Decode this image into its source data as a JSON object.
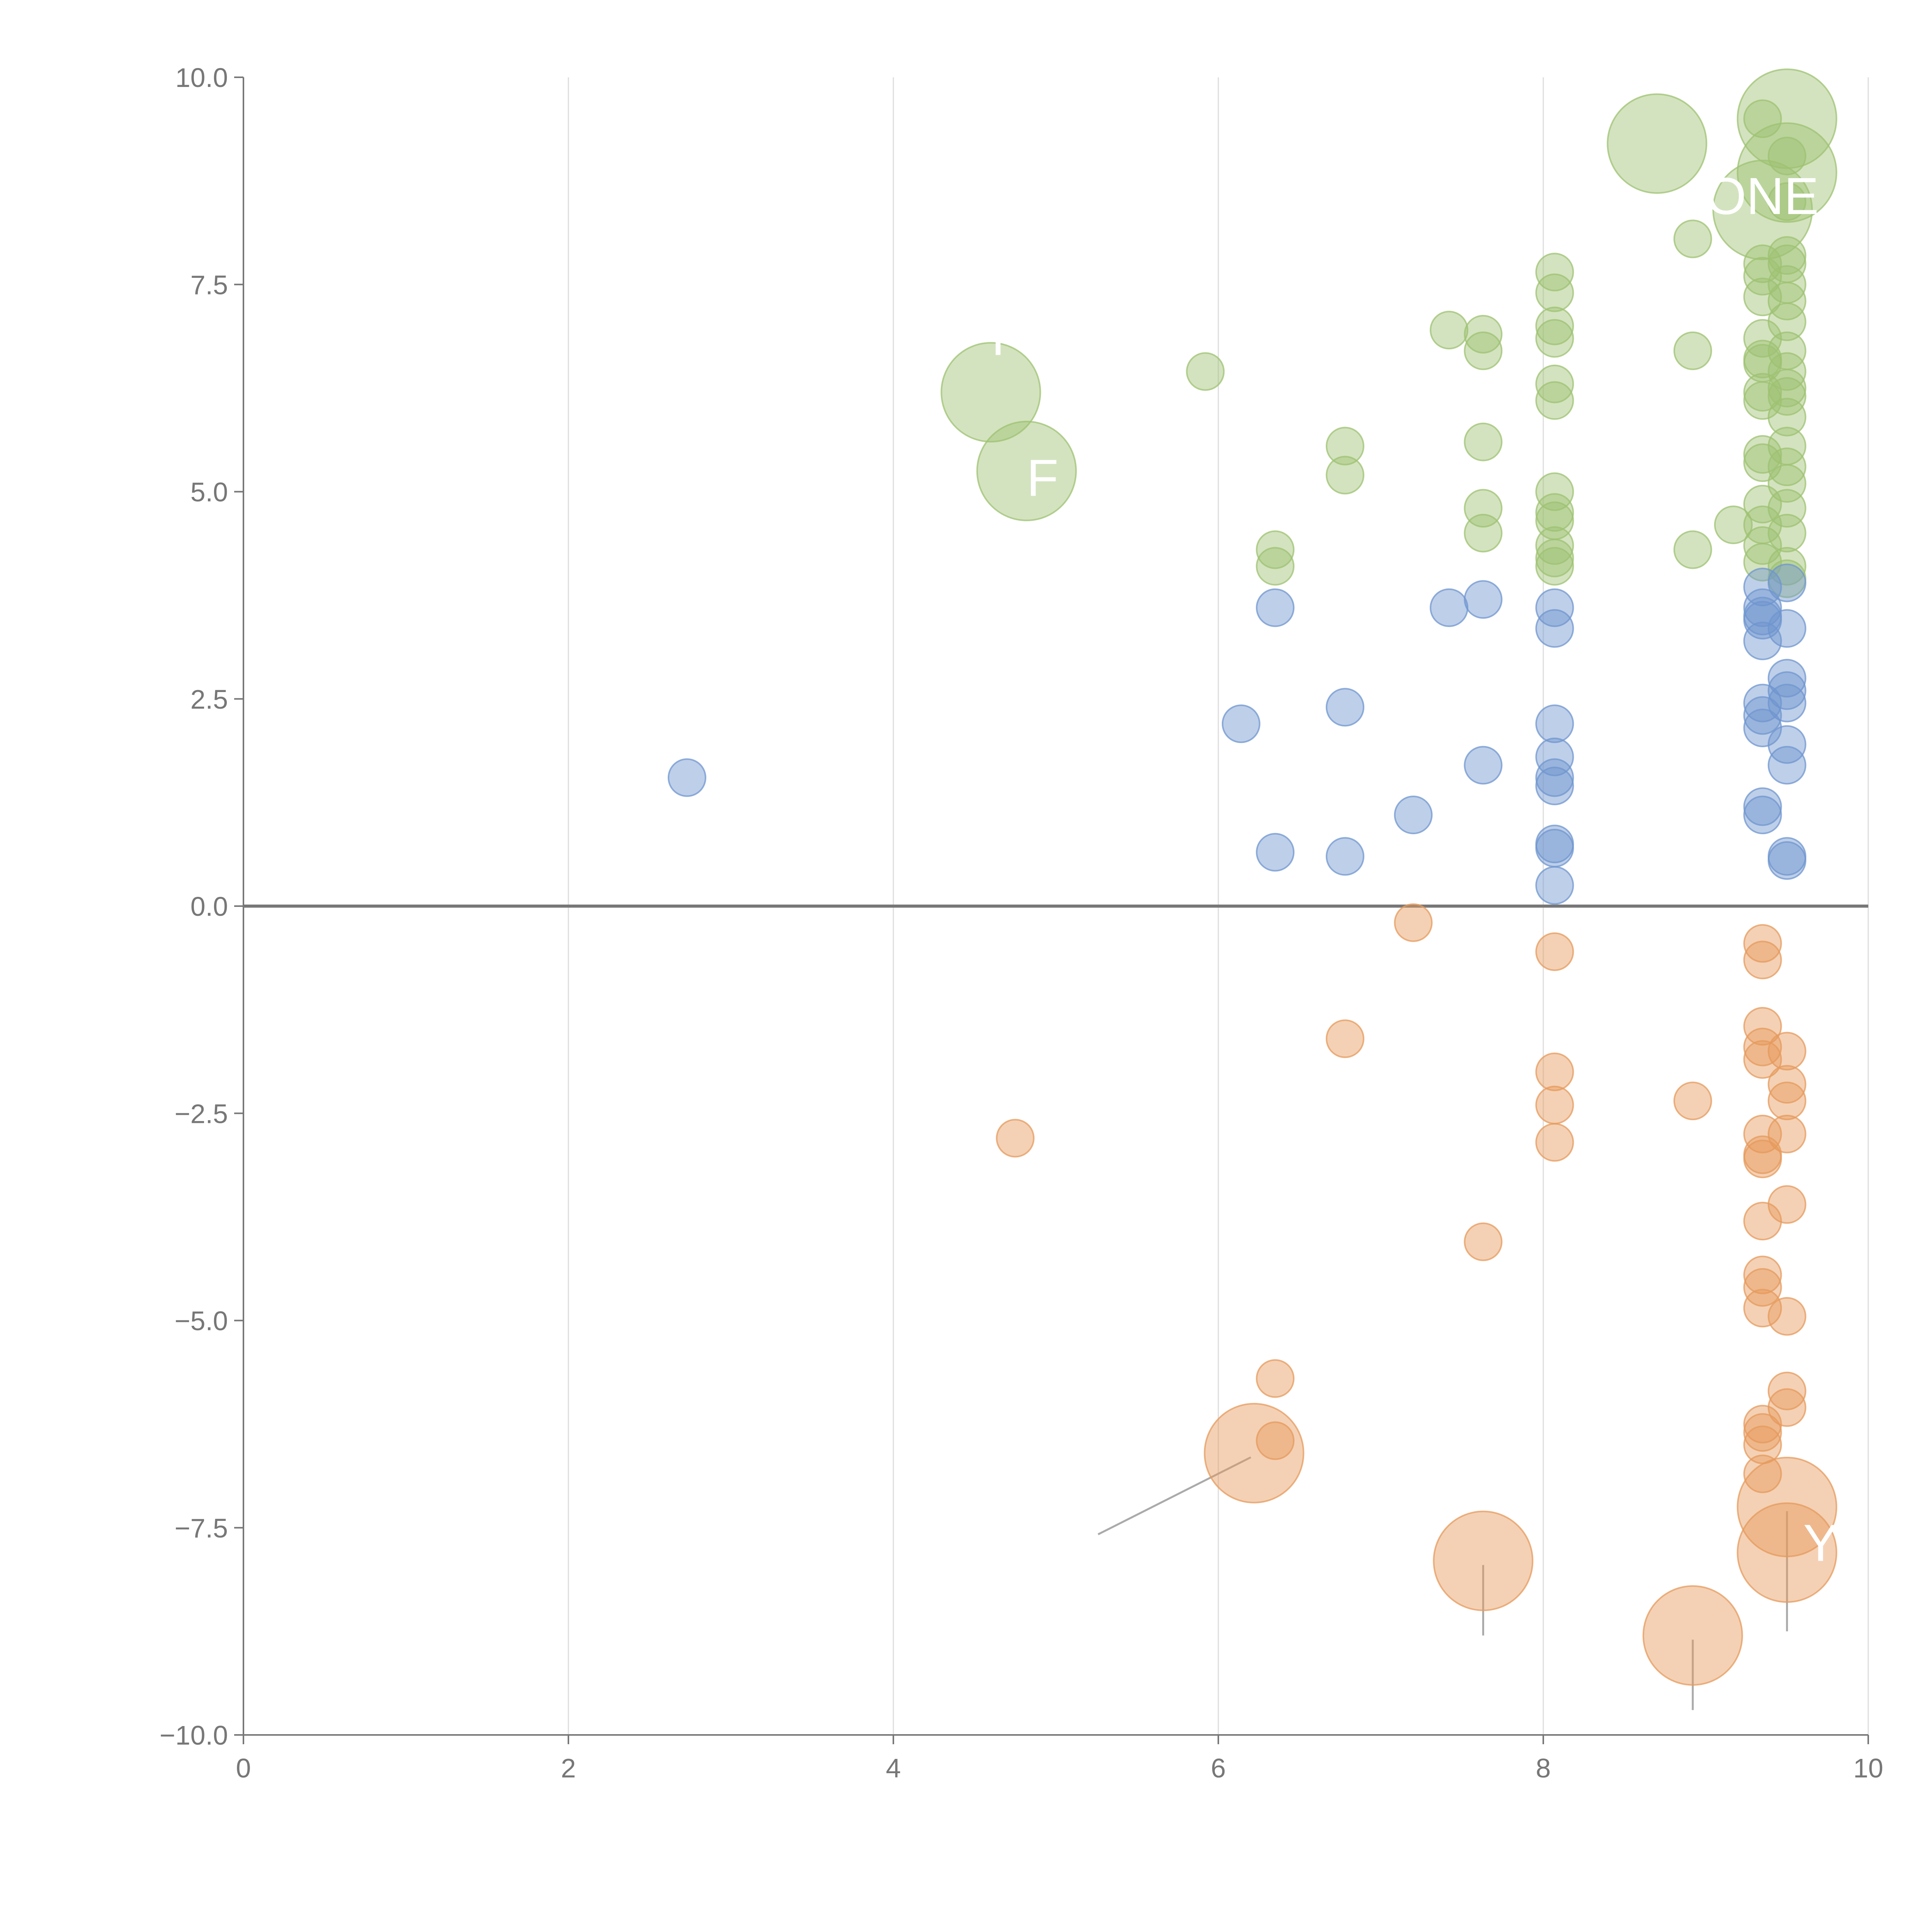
{
  "chart_data": {
    "type": "scatter",
    "title": "",
    "xlabel": "",
    "ylabel": "",
    "xlim": [
      0,
      10
    ],
    "ylim": [
      -10,
      10
    ],
    "x_ticks": [
      "0",
      "2",
      "4",
      "6",
      "8",
      "10"
    ],
    "x_tick_values": [
      0,
      2,
      4,
      6,
      8,
      10
    ],
    "y_ticks": [
      "10.0",
      "7.5",
      "5.0",
      "2.5",
      "0.0",
      "−2.5",
      "−5.0",
      "−7.5",
      "−10.0"
    ],
    "y_tick_values": [
      10,
      7.5,
      5,
      2.5,
      0,
      -2.5,
      -5,
      -7.5,
      -10
    ],
    "grid": "vertical",
    "legend": "none",
    "colors": {
      "green": "#9dc272",
      "blue": "#6f95cf",
      "orange": "#e6995c",
      "axis": "#777777",
      "grid": "#dddddd"
    },
    "series": [
      {
        "name": "green",
        "color": "#9dc272",
        "points": [
          [
            9.5,
            9.5,
            6
          ],
          [
            9.35,
            9.5,
            3
          ],
          [
            9.5,
            9.05,
            3
          ],
          [
            8.7,
            9.2,
            6
          ],
          [
            9.5,
            8.85,
            6
          ],
          [
            9.35,
            8.4,
            6
          ],
          [
            9.5,
            8.5,
            3
          ],
          [
            8.92,
            8.05,
            3
          ],
          [
            9.5,
            7.85,
            3
          ],
          [
            9.35,
            7.75,
            3
          ],
          [
            9.5,
            7.75,
            3
          ],
          [
            9.35,
            7.6,
            3
          ],
          [
            9.5,
            7.5,
            3
          ],
          [
            9.35,
            7.35,
            3
          ],
          [
            9.5,
            7.3,
            3
          ],
          [
            9.5,
            7.05,
            3
          ],
          [
            8.07,
            7.65,
            3
          ],
          [
            8.07,
            7.4,
            3
          ],
          [
            8.07,
            7.0,
            3
          ],
          [
            8.07,
            6.85,
            3
          ],
          [
            7.42,
            6.95,
            3
          ],
          [
            7.63,
            6.9,
            3
          ],
          [
            7.63,
            6.7,
            3
          ],
          [
            9.35,
            6.85,
            3
          ],
          [
            9.35,
            6.6,
            3
          ],
          [
            9.5,
            6.7,
            3
          ],
          [
            9.35,
            6.55,
            3
          ],
          [
            9.5,
            6.45,
            3
          ],
          [
            9.35,
            6.2,
            3
          ],
          [
            9.35,
            6.1,
            3
          ],
          [
            9.5,
            6.15,
            3
          ],
          [
            9.5,
            6.25,
            3
          ],
          [
            8.92,
            6.7,
            3
          ],
          [
            4.6,
            6.2,
            6
          ],
          [
            5.92,
            6.45,
            3
          ],
          [
            8.07,
            6.3,
            3
          ],
          [
            8.07,
            6.1,
            3
          ],
          [
            9.5,
            5.9,
            3
          ],
          [
            9.35,
            5.45,
            3
          ],
          [
            9.35,
            5.35,
            3
          ],
          [
            9.5,
            5.55,
            3
          ],
          [
            9.5,
            5.3,
            3
          ],
          [
            9.5,
            5.1,
            3
          ],
          [
            6.78,
            5.55,
            3
          ],
          [
            6.78,
            5.2,
            3
          ],
          [
            7.63,
            5.6,
            3
          ],
          [
            4.82,
            5.25,
            6
          ],
          [
            9.35,
            4.85,
            3
          ],
          [
            9.5,
            4.8,
            3
          ],
          [
            9.35,
            4.6,
            3
          ],
          [
            9.5,
            4.5,
            3
          ],
          [
            9.35,
            4.35,
            3
          ],
          [
            9.35,
            4.15,
            3
          ],
          [
            9.5,
            4.1,
            3
          ],
          [
            9.5,
            3.95,
            3
          ],
          [
            8.07,
            5.0,
            3
          ],
          [
            8.07,
            4.75,
            3
          ],
          [
            8.07,
            4.65,
            3
          ],
          [
            8.07,
            4.35,
            3
          ],
          [
            8.07,
            4.2,
            3
          ],
          [
            8.07,
            4.1,
            3
          ],
          [
            7.63,
            4.8,
            3
          ],
          [
            7.63,
            4.5,
            3
          ],
          [
            9.17,
            4.6,
            3
          ],
          [
            8.92,
            4.3,
            3
          ],
          [
            6.35,
            4.3,
            3
          ],
          [
            6.35,
            4.1,
            3
          ]
        ]
      },
      {
        "name": "blue",
        "color": "#6f95cf",
        "points": [
          [
            9.5,
            3.9,
            3
          ],
          [
            9.35,
            3.85,
            3
          ],
          [
            9.35,
            3.6,
            3
          ],
          [
            9.35,
            3.5,
            3
          ],
          [
            9.35,
            3.45,
            3
          ],
          [
            9.5,
            3.35,
            3
          ],
          [
            9.35,
            3.2,
            3
          ],
          [
            8.07,
            3.6,
            3
          ],
          [
            8.07,
            3.35,
            3
          ],
          [
            7.63,
            3.7,
            3
          ],
          [
            7.42,
            3.6,
            3
          ],
          [
            6.35,
            3.6,
            3
          ],
          [
            9.5,
            2.75,
            3
          ],
          [
            9.5,
            2.6,
            3
          ],
          [
            9.35,
            2.45,
            3
          ],
          [
            9.5,
            2.45,
            3
          ],
          [
            9.35,
            2.3,
            3
          ],
          [
            9.35,
            2.15,
            3
          ],
          [
            9.5,
            1.95,
            3
          ],
          [
            9.5,
            1.7,
            3
          ],
          [
            8.07,
            2.2,
            3
          ],
          [
            8.07,
            1.8,
            3
          ],
          [
            8.07,
            1.55,
            3
          ],
          [
            8.07,
            1.45,
            3
          ],
          [
            7.63,
            1.7,
            3
          ],
          [
            6.78,
            2.4,
            3
          ],
          [
            6.14,
            2.2,
            3
          ],
          [
            2.73,
            1.55,
            3
          ],
          [
            9.35,
            1.2,
            3
          ],
          [
            9.35,
            1.1,
            3
          ],
          [
            7.2,
            1.1,
            3
          ],
          [
            8.07,
            0.75,
            3
          ],
          [
            8.07,
            0.7,
            3
          ],
          [
            9.5,
            0.6,
            3
          ],
          [
            9.5,
            0.55,
            3
          ],
          [
            6.35,
            0.65,
            3
          ],
          [
            6.78,
            0.6,
            3
          ],
          [
            8.07,
            0.25,
            3
          ]
        ]
      },
      {
        "name": "orange",
        "color": "#e6995c",
        "points": [
          [
            7.2,
            -0.2,
            3
          ],
          [
            8.07,
            -0.55,
            3
          ],
          [
            9.35,
            -0.45,
            3
          ],
          [
            9.35,
            -0.65,
            3
          ],
          [
            6.78,
            -1.6,
            3
          ],
          [
            9.35,
            -1.45,
            3
          ],
          [
            9.35,
            -1.7,
            3
          ],
          [
            9.5,
            -1.75,
            3
          ],
          [
            9.35,
            -1.85,
            3
          ],
          [
            8.07,
            -2.0,
            3
          ],
          [
            9.5,
            -2.15,
            3
          ],
          [
            8.07,
            -2.4,
            3
          ],
          [
            9.5,
            -2.35,
            3
          ],
          [
            8.92,
            -2.35,
            3
          ],
          [
            4.75,
            -2.8,
            3
          ],
          [
            8.07,
            -2.85,
            3
          ],
          [
            9.35,
            -2.75,
            3
          ],
          [
            9.5,
            -2.75,
            3
          ],
          [
            9.35,
            -3.0,
            3
          ],
          [
            9.35,
            -3.05,
            3
          ],
          [
            9.5,
            -3.6,
            3
          ],
          [
            9.35,
            -3.8,
            3
          ],
          [
            7.63,
            -4.05,
            3
          ],
          [
            9.35,
            -4.45,
            3
          ],
          [
            9.35,
            -4.6,
            3
          ],
          [
            9.35,
            -4.85,
            3
          ],
          [
            9.5,
            -4.95,
            3
          ],
          [
            6.35,
            -5.7,
            3
          ],
          [
            9.5,
            -5.85,
            3
          ],
          [
            9.5,
            -6.05,
            3
          ],
          [
            9.35,
            -6.25,
            3
          ],
          [
            9.35,
            -6.35,
            3
          ],
          [
            9.35,
            -6.5,
            3
          ],
          [
            6.35,
            -6.45,
            3
          ],
          [
            6.22,
            -6.6,
            6
          ],
          [
            9.35,
            -6.85,
            3
          ],
          [
            9.5,
            -7.25,
            6
          ],
          [
            9.5,
            -7.8,
            6
          ],
          [
            7.63,
            -7.9,
            6
          ],
          [
            8.92,
            -8.8,
            6
          ]
        ]
      }
    ],
    "annotations": [
      {
        "text": "ONE",
        "x": 9.0,
        "y": 8.35
      },
      {
        "text": "I",
        "x": 4.6,
        "y": 6.65
      },
      {
        "text": "F",
        "x": 4.82,
        "y": 4.95
      },
      {
        "text": "Y",
        "x": 9.6,
        "y": -7.9
      }
    ]
  }
}
